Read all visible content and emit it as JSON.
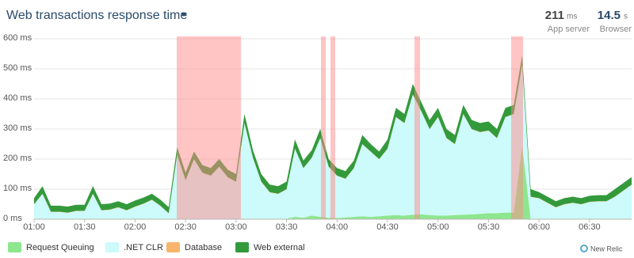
{
  "chart_data": {
    "type": "stacked_area",
    "title": "Web transactions response time",
    "categories": [
      "01:00",
      null,
      null,
      null,
      null,
      null,
      "01:30",
      null,
      null,
      null,
      null,
      null,
      "02:00",
      null,
      null,
      null,
      null,
      null,
      "02:30",
      null,
      null,
      null,
      null,
      null,
      "03:00",
      null,
      null,
      null,
      null,
      null,
      "03:30",
      null,
      null,
      null,
      null,
      null,
      "04:00",
      null,
      null,
      null,
      null,
      null,
      "04:30",
      null,
      null,
      null,
      null,
      null,
      "05:00",
      null,
      null,
      null,
      null,
      null,
      "05:30",
      null,
      null,
      null,
      null,
      null,
      "06:00",
      null,
      null,
      null,
      null,
      null,
      "06:30",
      null,
      null,
      null,
      null,
      null
    ],
    "series": [
      {
        "name": "Request Queuing",
        "color": "#8ee68e",
        "values": [
          2,
          2,
          2,
          2,
          2,
          2,
          2,
          2,
          2,
          2,
          2,
          2,
          2,
          2,
          2,
          2,
          2,
          2,
          2,
          2,
          2,
          2,
          2,
          2,
          2,
          2,
          2,
          2,
          2,
          2,
          2,
          8,
          5,
          12,
          8,
          5,
          4,
          6,
          8,
          10,
          8,
          10,
          12,
          14,
          12,
          15,
          16,
          14,
          12,
          12,
          14,
          15,
          16,
          18,
          20,
          20,
          22,
          22,
          245,
          2,
          2,
          2,
          2,
          2,
          2,
          2,
          2,
          2,
          2,
          2,
          2,
          2
        ]
      },
      {
        "name": ".NET CLR",
        "color": "#cdfafa",
        "values": [
          47,
          82,
          22,
          22,
          19,
          25,
          25,
          82,
          27,
          29,
          37,
          27,
          39,
          49,
          62,
          42,
          17,
          212,
          127,
          197,
          152,
          142,
          172,
          137,
          122,
          317,
          202,
          122,
          87,
          82,
          97,
          226,
          164,
          192,
          261,
          169,
          140,
          128,
          161,
          239,
          216,
          189,
          222,
          325,
          307,
          399,
          343,
          285,
          327,
          257,
          235,
          334,
          283,
          271,
          274,
          249,
          317,
          327,
          269,
          72,
          67,
          52,
          37,
          47,
          52,
          47,
          55,
          57,
          57,
          72,
          92,
          112
        ]
      },
      {
        "name": "Database",
        "color": "#f7b56c",
        "values": [
          1,
          1,
          1,
          1,
          1,
          1,
          1,
          1,
          1,
          1,
          1,
          1,
          1,
          1,
          1,
          1,
          1,
          1,
          1,
          1,
          1,
          1,
          1,
          1,
          1,
          1,
          1,
          1,
          1,
          1,
          1,
          1,
          1,
          1,
          1,
          1,
          1,
          1,
          1,
          1,
          1,
          1,
          1,
          1,
          1,
          1,
          1,
          1,
          1,
          1,
          1,
          1,
          1,
          1,
          1,
          1,
          1,
          1,
          1,
          1,
          1,
          1,
          1,
          1,
          1,
          1,
          1,
          1,
          1,
          1,
          1,
          1
        ]
      },
      {
        "name": "Web external",
        "color": "#339a3c",
        "values": [
          20,
          25,
          20,
          20,
          20,
          20,
          20,
          25,
          20,
          20,
          20,
          20,
          20,
          20,
          20,
          20,
          20,
          25,
          25,
          25,
          25,
          25,
          25,
          25,
          25,
          30,
          25,
          25,
          25,
          25,
          25,
          30,
          25,
          25,
          30,
          25,
          25,
          25,
          25,
          30,
          25,
          25,
          30,
          30,
          30,
          35,
          30,
          30,
          30,
          30,
          30,
          30,
          30,
          30,
          30,
          30,
          30,
          30,
          30,
          25,
          20,
          20,
          20,
          20,
          20,
          20,
          20,
          20,
          20,
          25,
          25,
          25
        ]
      }
    ],
    "ylim": [
      0,
      600
    ],
    "yticks": [
      {
        "value": 0,
        "label": "0 ms"
      },
      {
        "value": 100,
        "label": "100 ms"
      },
      {
        "value": 200,
        "label": "200 ms"
      },
      {
        "value": 300,
        "label": "300 ms"
      },
      {
        "value": 400,
        "label": "400 ms"
      },
      {
        "value": 500,
        "label": "500 ms"
      },
      {
        "value": 600,
        "label": "600 ms"
      }
    ],
    "grid": true
  },
  "summary": [
    {
      "value": "211",
      "unit": "ms",
      "label": "App server"
    },
    {
      "value": "14.5",
      "unit": "s",
      "label": "Browser"
    }
  ],
  "brand": "New Relic"
}
